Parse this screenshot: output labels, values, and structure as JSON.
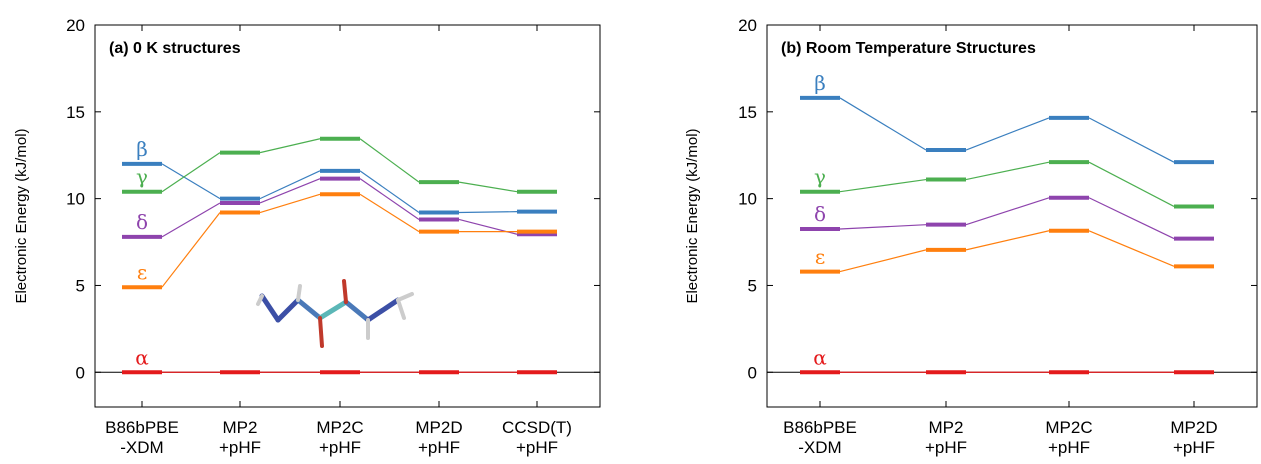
{
  "figure": {
    "panels": [
      "a",
      "b"
    ]
  },
  "chart_data": [
    {
      "type": "line",
      "panel_id": "a",
      "title": "(a) 0 K structures",
      "ylabel": "Electronic Energy (kJ/mol)",
      "xlabel": "",
      "ylim": [
        -2,
        20
      ],
      "yticks": [
        0,
        5,
        10,
        15,
        20
      ],
      "categories": [
        "B86bPBE\n-XDM",
        "MP2\n+pHF",
        "MP2C\n+pHF",
        "MP2D\n+pHF",
        "CCSD(T)\n+pHF"
      ],
      "series": [
        {
          "name": "β",
          "color": "#3a7fbf",
          "values": [
            12.0,
            10.0,
            11.6,
            9.2,
            9.25
          ]
        },
        {
          "name": "γ",
          "color": "#4caf50",
          "values": [
            10.4,
            12.65,
            13.45,
            10.95,
            10.4
          ]
        },
        {
          "name": "δ",
          "color": "#8e44ad",
          "values": [
            7.8,
            9.75,
            11.15,
            8.8,
            7.95
          ]
        },
        {
          "name": "ε",
          "color": "#ff7f0e",
          "values": [
            4.9,
            9.2,
            10.25,
            8.1,
            8.1
          ]
        },
        {
          "name": "α",
          "color": "#e41a1c",
          "values": [
            0,
            0,
            0,
            0,
            0
          ]
        }
      ],
      "grid": false,
      "legend": "inline labels at left"
    },
    {
      "type": "line",
      "panel_id": "b",
      "title": "(b) Room Temperature Structures",
      "ylabel": "Electronic Energy (kJ/mol)",
      "xlabel": "",
      "ylim": [
        -2,
        20
      ],
      "yticks": [
        0,
        5,
        10,
        15,
        20
      ],
      "categories": [
        "B86bPBE\n-XDM",
        "MP2\n+pHF",
        "MP2C\n+pHF",
        "MP2D\n+pHF"
      ],
      "series": [
        {
          "name": "β",
          "color": "#3a7fbf",
          "values": [
            15.8,
            12.8,
            14.65,
            12.1
          ]
        },
        {
          "name": "γ",
          "color": "#4caf50",
          "values": [
            10.4,
            11.1,
            12.1,
            9.55
          ]
        },
        {
          "name": "δ",
          "color": "#8e44ad",
          "values": [
            8.25,
            8.5,
            10.05,
            7.7
          ]
        },
        {
          "name": "ε",
          "color": "#ff7f0e",
          "values": [
            5.8,
            7.05,
            8.15,
            6.1
          ]
        },
        {
          "name": "α",
          "color": "#e41a1c",
          "values": [
            0,
            0,
            0,
            0
          ]
        }
      ],
      "grid": false,
      "legend": "inline labels at left"
    }
  ]
}
